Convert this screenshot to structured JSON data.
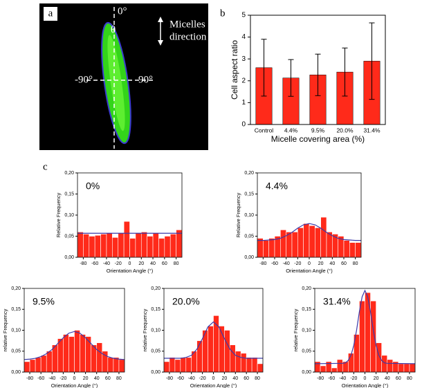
{
  "panel_a": {
    "label": "a",
    "angle_top": "0°",
    "theta": "θ",
    "angle_left": "-90°",
    "angle_right": "90°",
    "arrow_label_1": "Micelles",
    "arrow_label_2": "direction"
  },
  "panel_labels": {
    "b": "b",
    "c": "c"
  },
  "chart_data": [
    {
      "type": "bar",
      "categories": [
        "Control",
        "4.4%",
        "9.5%",
        "20.0%",
        "31.4%"
      ],
      "values": [
        2.6,
        2.13,
        2.27,
        2.4,
        2.9
      ],
      "errors": [
        1.3,
        0.84,
        0.95,
        1.1,
        1.75
      ],
      "color": "#ff2a1a",
      "ylim": [
        0,
        5
      ],
      "yticks": [
        0,
        1,
        2,
        3,
        4,
        5
      ],
      "ylabel": "Cell aspect ratio",
      "xlabel": "Micelle covering area (%)"
    },
    {
      "type": "histogram",
      "title": "0%",
      "bins": [
        -90,
        -80,
        -70,
        -60,
        -50,
        -40,
        -30,
        -20,
        -10,
        0,
        10,
        20,
        30,
        40,
        50,
        60,
        70,
        80,
        90
      ],
      "counts": [
        0.06,
        0.055,
        0.05,
        0.052,
        0.055,
        0.058,
        0.047,
        0.058,
        0.085,
        0.045,
        0.058,
        0.06,
        0.05,
        0.058,
        0.045,
        0.05,
        0.055,
        0.065
      ],
      "color": "#ff2a1a",
      "fit": {
        "color": "#3a3aaa",
        "x": [
          -90,
          90
        ],
        "values": [
          0.057,
          0.057
        ]
      },
      "xlim": [
        -90,
        90
      ],
      "ylim": [
        0,
        0.2
      ],
      "xticks": [
        -80,
        -60,
        -40,
        -20,
        0,
        20,
        40,
        60,
        80
      ],
      "yticks": [
        {
          "value": 0,
          "label": "0,00"
        },
        {
          "value": 0.05,
          "label": "0,05"
        },
        {
          "value": 0.1,
          "label": "0,10"
        },
        {
          "value": 0.15,
          "label": "0,15"
        },
        {
          "value": 0.2,
          "label": "0,20"
        }
      ],
      "xlabel": "Orientation Angle (°)",
      "ylabel": "Relative Frequency"
    },
    {
      "type": "histogram",
      "title": "4.4%",
      "bins": [
        -90,
        -80,
        -70,
        -60,
        -50,
        -40,
        -30,
        -20,
        -10,
        0,
        10,
        20,
        30,
        40,
        50,
        60,
        70,
        80,
        90
      ],
      "counts": [
        0.045,
        0.04,
        0.045,
        0.05,
        0.065,
        0.06,
        0.06,
        0.07,
        0.08,
        0.075,
        0.07,
        0.095,
        0.06,
        0.055,
        0.05,
        0.04,
        0.035,
        0.035
      ],
      "color": "#ff2a1a",
      "fit": {
        "color": "#3a3aaa",
        "x": [
          -90,
          -80,
          -70,
          -60,
          -50,
          -40,
          -30,
          -20,
          -10,
          0,
          10,
          20,
          30,
          40,
          50,
          60,
          70,
          80,
          90
        ],
        "values": [
          0.04,
          0.04,
          0.041,
          0.042,
          0.045,
          0.051,
          0.059,
          0.069,
          0.077,
          0.08,
          0.077,
          0.069,
          0.059,
          0.051,
          0.045,
          0.042,
          0.041,
          0.04,
          0.04
        ]
      },
      "xlim": [
        -90,
        90
      ],
      "ylim": [
        0,
        0.2
      ],
      "xticks": [
        -80,
        -60,
        -40,
        -20,
        0,
        20,
        40,
        60,
        80
      ],
      "yticks": [
        {
          "value": 0,
          "label": "0,00"
        },
        {
          "value": 0.05,
          "label": "0,05"
        },
        {
          "value": 0.1,
          "label": "0,10"
        },
        {
          "value": 0.15,
          "label": "0,15"
        },
        {
          "value": 0.2,
          "label": "0,20"
        }
      ],
      "xlabel": "Orientation Angle (°)",
      "ylabel": "Relative Frequency"
    },
    {
      "type": "histogram",
      "title": "9.5%",
      "bins": [
        -90,
        -80,
        -70,
        -60,
        -50,
        -40,
        -30,
        -20,
        -10,
        0,
        10,
        20,
        30,
        40,
        50,
        60,
        70,
        80,
        90
      ],
      "counts": [
        0.025,
        0.03,
        0.035,
        0.04,
        0.05,
        0.065,
        0.08,
        0.09,
        0.085,
        0.1,
        0.09,
        0.085,
        0.065,
        0.07,
        0.05,
        0.035,
        0.035,
        0.03
      ],
      "color": "#ff2a1a",
      "fit": {
        "color": "#3a3aaa",
        "x": [
          -90,
          -80,
          -70,
          -60,
          -50,
          -40,
          -30,
          -20,
          -10,
          0,
          10,
          20,
          30,
          40,
          50,
          60,
          70,
          80,
          90
        ],
        "values": [
          0.03,
          0.031,
          0.033,
          0.037,
          0.044,
          0.054,
          0.068,
          0.082,
          0.093,
          0.097,
          0.093,
          0.082,
          0.068,
          0.054,
          0.044,
          0.037,
          0.033,
          0.031,
          0.03
        ]
      },
      "xlim": [
        -90,
        90
      ],
      "ylim": [
        0,
        0.2
      ],
      "xticks": [
        -80,
        -60,
        -40,
        -20,
        0,
        20,
        40,
        60,
        80
      ],
      "yticks": [
        {
          "value": 0,
          "label": "0,00"
        },
        {
          "value": 0.05,
          "label": "0,05"
        },
        {
          "value": 0.1,
          "label": "0,10"
        },
        {
          "value": 0.15,
          "label": "0,15"
        },
        {
          "value": 0.2,
          "label": "0,20"
        }
      ],
      "xlabel": "Orientation Angle (°)",
      "ylabel": "relative Frequency"
    },
    {
      "type": "histogram",
      "title": "20.0%",
      "bins": [
        -90,
        -80,
        -70,
        -60,
        -50,
        -40,
        -30,
        -20,
        -10,
        0,
        10,
        20,
        30,
        40,
        50,
        60,
        70,
        80,
        90
      ],
      "counts": [
        0.025,
        0.035,
        0.03,
        0.035,
        0.035,
        0.05,
        0.075,
        0.1,
        0.11,
        0.135,
        0.11,
        0.1,
        0.065,
        0.05,
        0.045,
        0.035,
        0.035,
        0.02
      ],
      "color": "#ff2a1a",
      "fit": {
        "color": "#3a3aaa",
        "x": [
          -90,
          -80,
          -70,
          -60,
          -50,
          -40,
          -30,
          -20,
          -10,
          0,
          10,
          20,
          30,
          40,
          50,
          60,
          70,
          80,
          90
        ],
        "values": [
          0.033,
          0.033,
          0.033,
          0.033,
          0.035,
          0.04,
          0.055,
          0.08,
          0.108,
          0.12,
          0.108,
          0.08,
          0.055,
          0.04,
          0.035,
          0.033,
          0.033,
          0.033,
          0.033
        ]
      },
      "xlim": [
        -90,
        90
      ],
      "ylim": [
        0,
        0.2
      ],
      "xticks": [
        -80,
        -60,
        -40,
        -20,
        0,
        20,
        40,
        60,
        80
      ],
      "yticks": [
        {
          "value": 0,
          "label": "0,00"
        },
        {
          "value": 0.05,
          "label": "0,05"
        },
        {
          "value": 0.1,
          "label": "0,10"
        },
        {
          "value": 0.15,
          "label": "0,15"
        },
        {
          "value": 0.2,
          "label": "0,20"
        }
      ],
      "xlabel": "Orientation Angle (°)",
      "ylabel": "relative Frequency"
    },
    {
      "type": "histogram",
      "title": "31.4%",
      "bins": [
        -90,
        -80,
        -70,
        -60,
        -50,
        -40,
        -30,
        -20,
        -10,
        0,
        10,
        20,
        30,
        40,
        50,
        60,
        70,
        80,
        90
      ],
      "counts": [
        0.025,
        0.015,
        0.025,
        0.01,
        0.03,
        0.025,
        0.045,
        0.09,
        0.17,
        0.19,
        0.17,
        0.07,
        0.04,
        0.03,
        0.025,
        0.02,
        0.02,
        0.02
      ],
      "color": "#ff2a1a",
      "fit": {
        "color": "#3a3aaa",
        "x": [
          -90,
          -40,
          -35,
          -30,
          -25,
          -20,
          -15,
          -10,
          -5,
          0,
          5,
          10,
          15,
          20,
          25,
          30,
          35,
          40,
          90
        ],
        "values": [
          0.02,
          0.021,
          0.022,
          0.028,
          0.04,
          0.064,
          0.1,
          0.144,
          0.18,
          0.195,
          0.18,
          0.144,
          0.1,
          0.064,
          0.04,
          0.028,
          0.022,
          0.021,
          0.02
        ]
      },
      "xlim": [
        -90,
        90
      ],
      "ylim": [
        0,
        0.2
      ],
      "xticks": [
        -80,
        -60,
        -40,
        -20,
        0,
        20,
        40,
        60,
        80
      ],
      "yticks": [
        {
          "value": 0,
          "label": "0,00"
        },
        {
          "value": 0.05,
          "label": "0,05"
        },
        {
          "value": 0.1,
          "label": "0,10"
        },
        {
          "value": 0.15,
          "label": "0,15"
        },
        {
          "value": 0.2,
          "label": "0,20"
        }
      ],
      "xlabel": "Orientation Angle (°)",
      "ylabel": "relative Frequency"
    }
  ]
}
